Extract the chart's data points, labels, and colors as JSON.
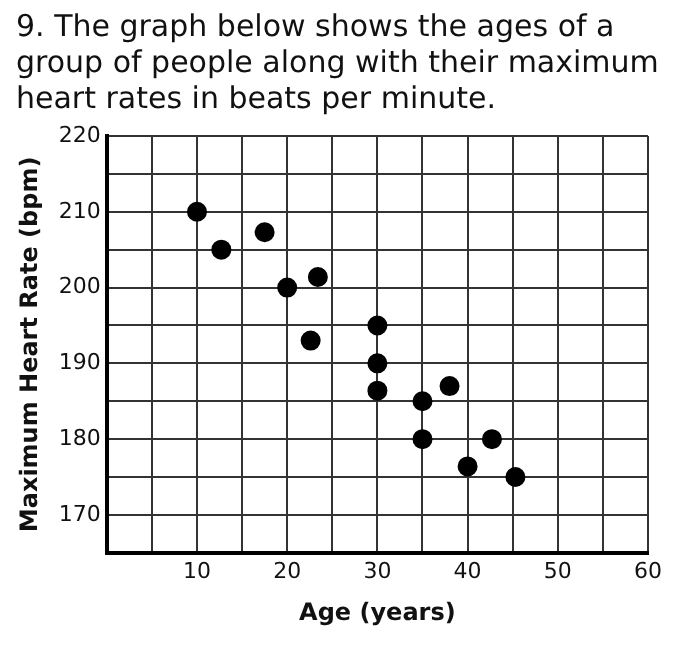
{
  "chart_data": {
    "type": "scatter",
    "title": "9. The graph below shows the ages of a group of people along with their maximum heart rates in beats per minute.",
    "xlabel": "Age (years)",
    "ylabel": "Maximum Heart Rate (bpm)",
    "x": [
      10,
      12.7,
      17.5,
      20,
      23.4,
      22.6,
      30,
      30,
      30,
      35,
      38,
      35,
      40,
      42.7,
      45.3
    ],
    "series": [
      {
        "color": "#000000",
        "values": [
          210,
          205,
          207.3,
          200,
          201.4,
          193,
          195,
          190,
          186.4,
          185,
          187,
          180,
          176.4,
          180,
          175
        ]
      }
    ],
    "xlim": [
      0,
      60
    ],
    "xticks": [
      {
        "value": 5,
        "label": null
      },
      10,
      {
        "value": 15,
        "label": null
      },
      20,
      {
        "value": 25,
        "label": null
      },
      30,
      {
        "value": 35,
        "label": null
      },
      40,
      {
        "value": 45,
        "label": null
      },
      50,
      {
        "value": 55,
        "label": null
      },
      60
    ],
    "ylim": [
      165,
      220
    ],
    "yticks": [
      170,
      {
        "value": 175,
        "label": null
      },
      180,
      {
        "value": 185,
        "label": null
      },
      190,
      {
        "value": 195,
        "label": null
      },
      200,
      {
        "value": 205,
        "label": null
      },
      210,
      {
        "value": 215,
        "label": null
      },
      220
    ],
    "grid": true,
    "legend": false,
    "marker": "circle"
  }
}
